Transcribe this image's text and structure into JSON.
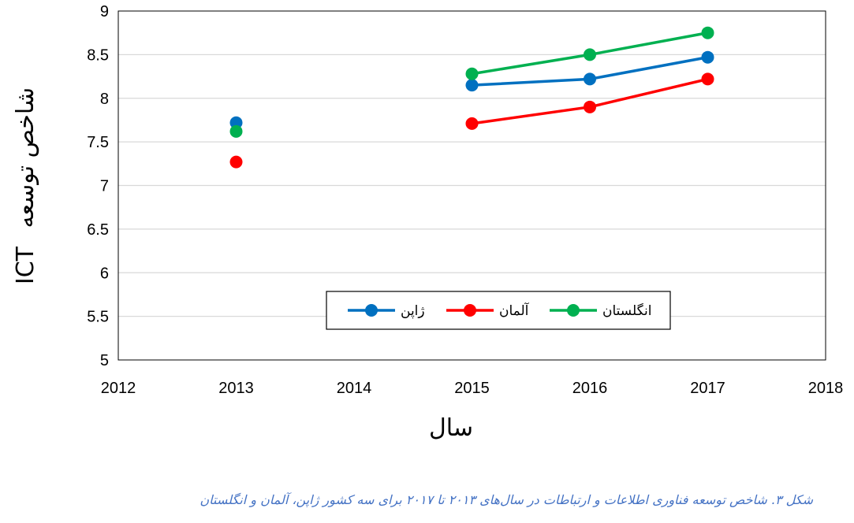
{
  "chart_data": {
    "type": "line",
    "xlabel": "سال",
    "ylabel_rtl": "شاخص توسعه",
    "ylabel_ltr": "ICT",
    "xlim": [
      2012,
      2018
    ],
    "ylim": [
      5,
      9
    ],
    "xticks": [
      "2012",
      "2013",
      "2014",
      "2015",
      "2016",
      "2017",
      "2018"
    ],
    "yticks": [
      "5",
      "5.5",
      "6",
      "6.5",
      "7",
      "7.5",
      "8",
      "8.5",
      "9"
    ],
    "grid": true,
    "legend_position": "bottom-center",
    "x": [
      2013,
      2015,
      2016,
      2017
    ],
    "series": [
      {
        "name": "ژاپن",
        "color": "#0070c0",
        "values": [
          7.72,
          8.15,
          8.22,
          8.47
        ]
      },
      {
        "name": "آلمان",
        "color": "#ff0000",
        "values": [
          7.27,
          7.71,
          7.9,
          8.22
        ]
      },
      {
        "name": "انگلستان",
        "color": "#00b050",
        "values": [
          7.62,
          8.28,
          8.5,
          8.75
        ]
      }
    ]
  },
  "caption": "شکل ۳. شاخص توسعه فناوری اطلاعات و ارتباطات در سال‌های ۲۰۱۳ تا ۲۰۱۷ برای سه کشور ژاپن، آلمان و انگلستان"
}
